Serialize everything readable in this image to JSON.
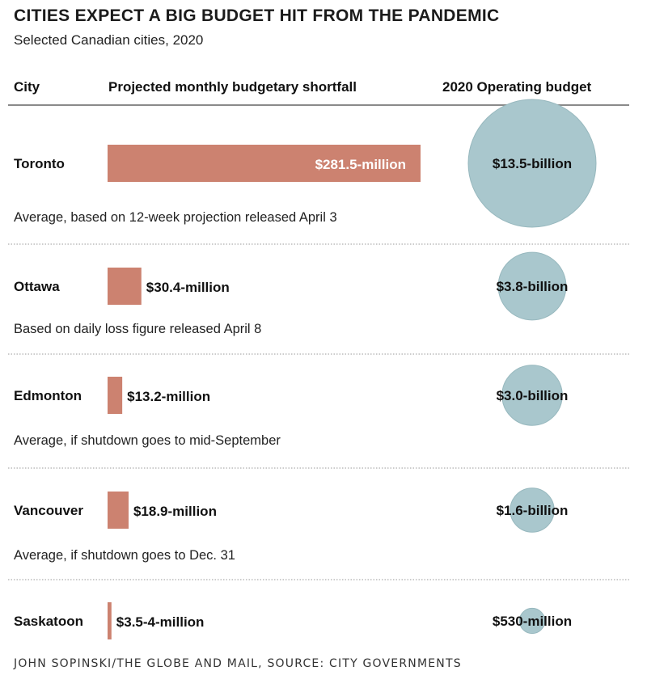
{
  "title": "CITIES EXPECT A BIG BUDGET HIT FROM THE PANDEMIC",
  "subtitle": "Selected Canadian cities, 2020",
  "headers": {
    "city": "City",
    "shortfall": "Projected monthly budgetary shortfall",
    "budget": "2020 Operating budget"
  },
  "source": "JOHN SOPINSKI/THE GLOBE AND MAIL, SOURCE: CITY GOVERNMENTS",
  "colors": {
    "bar": "#cc8270",
    "bubble": "#a9c7cd",
    "bubble_edge": "#97b8be",
    "divider": "#999999"
  },
  "chart_data": {
    "type": "bar",
    "title": "CITIES EXPECT A BIG BUDGET HIT FROM THE PANDEMIC",
    "subtitle": "Selected Canadian cities, 2020",
    "bar_series": "Projected monthly budgetary shortfall",
    "bubble_series": "2020 Operating budget",
    "bar_unit": "$ millions",
    "bubble_unit": "$ billions",
    "categories": [
      "Toronto",
      "Ottawa",
      "Edmonton",
      "Vancouver",
      "Saskatoon"
    ],
    "shortfall_values": [
      281.5,
      30.4,
      13.2,
      18.9,
      3.5
    ],
    "shortfall_labels": [
      "$281.5-million",
      "$30.4-million",
      "$13.2-million",
      "$18.9-million",
      "$3.5-4-million"
    ],
    "budget_values": [
      13.5,
      3.8,
      3.0,
      1.6,
      0.53
    ],
    "budget_labels": [
      "$13.5-billion",
      "$3.8-billion",
      "$3.0-billion",
      "$1.6-billion",
      "$530-million"
    ],
    "notes": [
      "Average, based on 12-week projection released April 3",
      "Based on daily loss figure released April 8",
      "Average, if shutdown goes to mid-September",
      "Average, if shutdown goes to Dec. 31",
      ""
    ]
  }
}
